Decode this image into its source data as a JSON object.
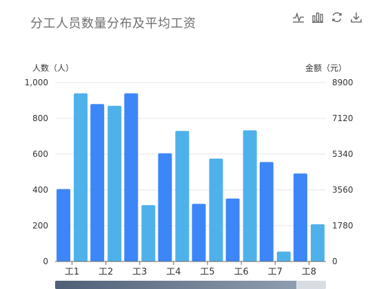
{
  "title": "分工人员数量分布及平均工资",
  "toolbar": [
    {
      "icon": "line-chart-icon"
    },
    {
      "icon": "bar-chart-icon"
    },
    {
      "icon": "refresh-icon"
    },
    {
      "icon": "download-icon"
    }
  ],
  "colors": {
    "dark_blue": "#3d86f7",
    "light_blue": "#4fb1ea",
    "grid": "#e6e6e6",
    "axis": "#666666"
  },
  "chart_data": {
    "type": "bar",
    "categories": [
      "工1",
      "工2",
      "工3",
      "工4",
      "工5",
      "工6",
      "工7",
      "工8"
    ],
    "y_left": {
      "label": "人数（人）",
      "ylim": [
        0,
        1000
      ],
      "ticks": [
        "0",
        "200",
        "400",
        "600",
        "800",
        "1,000"
      ]
    },
    "y_right": {
      "label": "金额（元）",
      "ylim": [
        0,
        8900
      ],
      "ticks": [
        "0",
        "1780",
        "3560",
        "5340",
        "7120",
        "8900"
      ]
    },
    "series": [
      {
        "axis": "left",
        "color": "#3d86f7",
        "values": [
          405,
          880,
          940,
          605,
          322,
          352,
          556,
          492
        ]
      },
      {
        "axis": "right",
        "color": "#4fb1ea",
        "values": [
          8366,
          7743,
          2804,
          6497,
          5118,
          6524,
          490,
          1851
        ]
      }
    ],
    "grid": true,
    "zoom_slider": {
      "start": 0,
      "end": 0.89
    }
  }
}
